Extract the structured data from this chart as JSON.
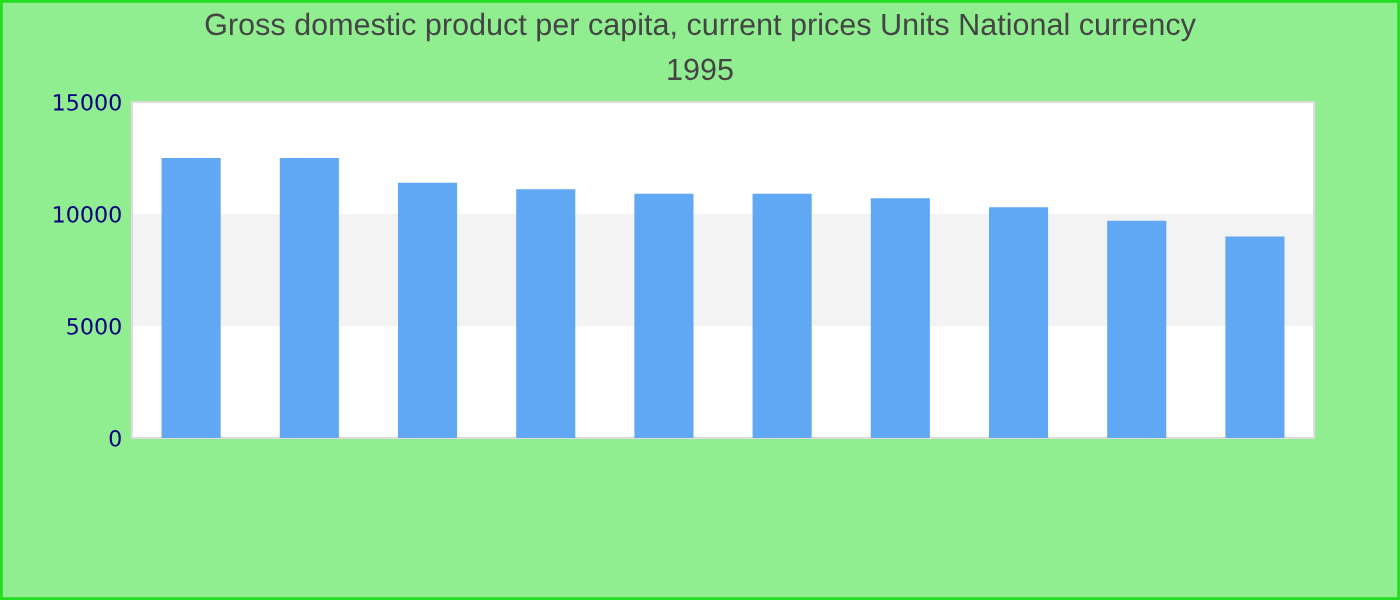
{
  "chart_data": {
    "type": "bar",
    "title": "Gross domestic product per capita, current prices Units National currency",
    "subtitle": "1995",
    "categories": [
      null,
      null,
      null,
      null,
      null,
      null,
      null,
      null,
      null,
      null
    ],
    "values": [
      12500,
      12500,
      11400,
      11100,
      10900,
      10900,
      10700,
      10300,
      9700,
      9000
    ],
    "color": "#60a8f4",
    "ylim": [
      0,
      15000
    ],
    "yticks": [
      0,
      5000,
      10000,
      15000
    ],
    "bands": [
      {
        "axis": "y",
        "from": 5000,
        "to": 10000,
        "color": "#f3f3f3"
      }
    ]
  }
}
